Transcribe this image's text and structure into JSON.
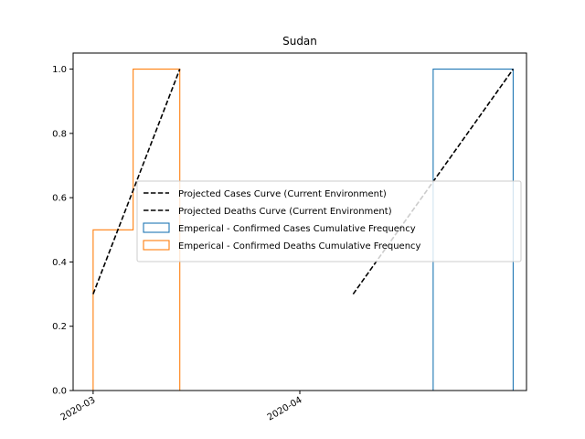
{
  "chart_data": {
    "type": "step",
    "title": "Sudan",
    "xlabel": "",
    "ylabel": "",
    "xlim": [
      "2020-02-27",
      "2020-05-05"
    ],
    "ylim": [
      0.0,
      1.05
    ],
    "x_ticks": [
      {
        "date": "2020-03-01",
        "label": "2020-03"
      },
      {
        "date": "2020-04-01",
        "label": "2020-04"
      }
    ],
    "y_ticks": [
      {
        "value": 0.0,
        "label": "0.0"
      },
      {
        "value": 0.2,
        "label": "0.2"
      },
      {
        "value": 0.4,
        "label": "0.4"
      },
      {
        "value": 0.6,
        "label": "0.6"
      },
      {
        "value": 0.8,
        "label": "0.8"
      },
      {
        "value": 1.0,
        "label": "1.0"
      }
    ],
    "grid": false,
    "legend": {
      "placement": "center-right"
    },
    "series": [
      {
        "name": "Projected Cases Curve (Current Environment)",
        "kind": "line",
        "style": "dashed",
        "color": "#000000",
        "points": [
          {
            "x": "2020-04-09",
            "y": 0.3
          },
          {
            "x": "2020-05-03",
            "y": 1.0
          }
        ]
      },
      {
        "name": "Projected Deaths Curve (Current Environment)",
        "kind": "line",
        "style": "dashed",
        "color": "#000000",
        "points": [
          {
            "x": "2020-03-01",
            "y": 0.3
          },
          {
            "x": "2020-03-14",
            "y": 1.0
          }
        ]
      },
      {
        "name": "Emperical - Confirmed Cases Cumulative Frequency",
        "kind": "step",
        "color": "#1f77b4",
        "points": [
          {
            "x": "2020-04-09",
            "y": 0.0
          },
          {
            "x": "2020-04-09",
            "y": 0.0
          },
          {
            "x": "2020-04-21",
            "y": 0.0
          },
          {
            "x": "2020-04-21",
            "y": 1.0
          },
          {
            "x": "2020-05-03",
            "y": 1.0
          },
          {
            "x": "2020-05-03",
            "y": 0.0
          }
        ]
      },
      {
        "name": "Emperical - Confirmed Deaths Cumulative Frequency",
        "kind": "step",
        "color": "#ff7f0e",
        "points": [
          {
            "x": "2020-03-01",
            "y": 0.0
          },
          {
            "x": "2020-03-01",
            "y": 0.5
          },
          {
            "x": "2020-03-07",
            "y": 0.5
          },
          {
            "x": "2020-03-07",
            "y": 1.0
          },
          {
            "x": "2020-03-14",
            "y": 1.0
          },
          {
            "x": "2020-03-14",
            "y": 0.0
          }
        ]
      }
    ]
  }
}
